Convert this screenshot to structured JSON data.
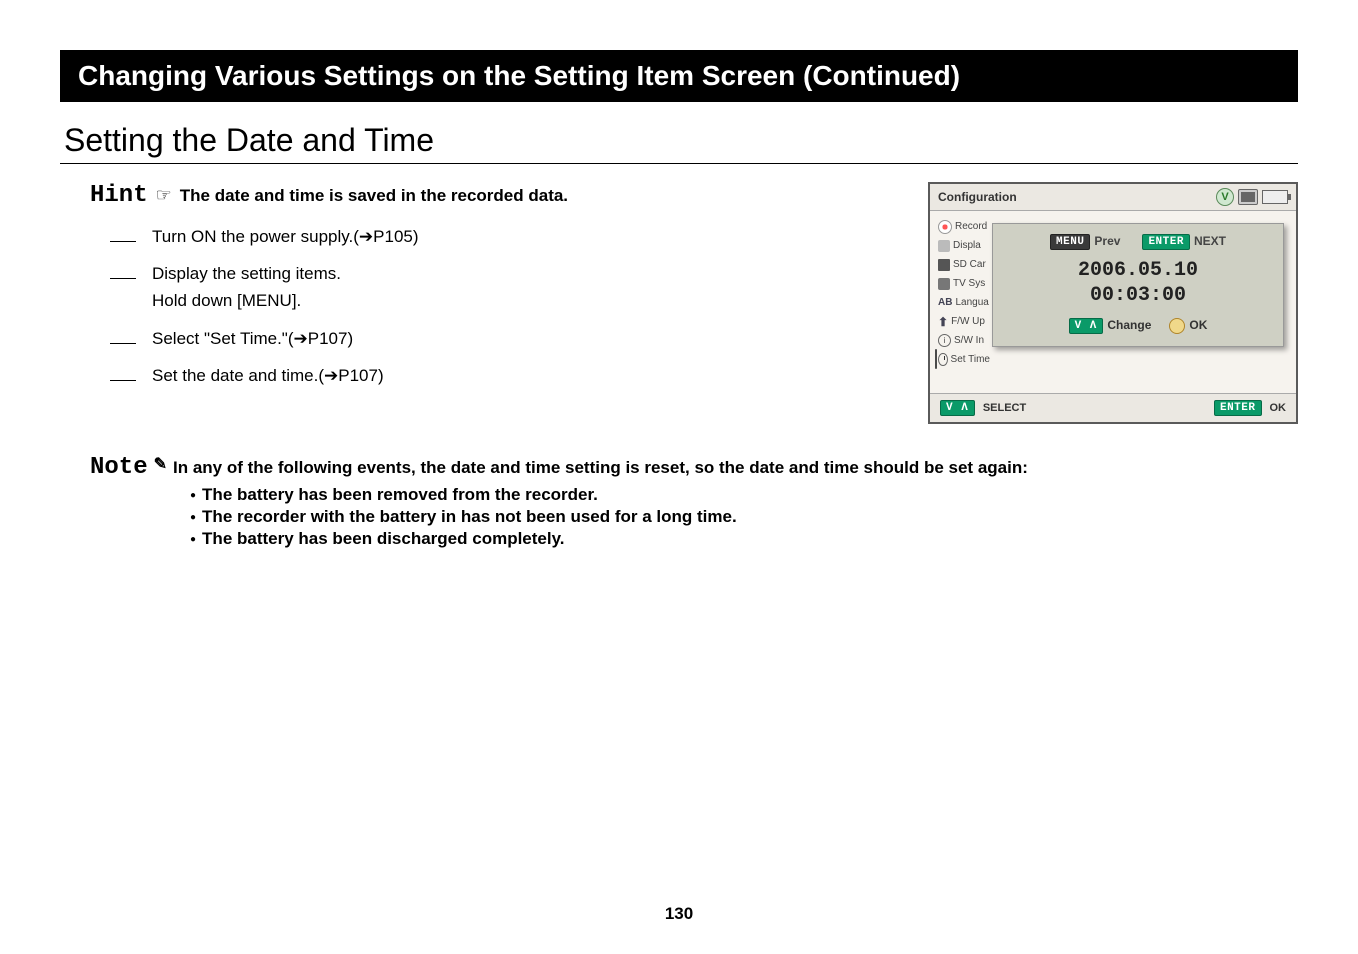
{
  "header": {
    "title": "Changing Various Settings on the Setting Item Screen (Continued)"
  },
  "section": {
    "title": "Setting the Date and Time"
  },
  "hint": {
    "label": "Hint",
    "icon": "☞",
    "text": "The date and time is saved in the recorded data."
  },
  "steps": [
    "Turn ON the power supply.(➔P105)",
    "Display the setting items.\nHold down [MENU].",
    "Select \"Set Time.\"(➔P107)",
    "Set the date and time.(➔P107)"
  ],
  "note": {
    "label": "Note",
    "icon": "✎",
    "lead": "In any of the following events, the date and time setting is reset, so the date and time should be set again:",
    "bullets": [
      "The battery has been removed from the recorder.",
      "The recorder with the battery in has not been used for a long time.",
      "The battery has been discharged completely."
    ]
  },
  "panel": {
    "header_title": "Configuration",
    "sidebar": [
      {
        "icon": "rec",
        "label": "Record"
      },
      {
        "icon": "disp",
        "label": "Displa"
      },
      {
        "icon": "sd",
        "label": "SD Car"
      },
      {
        "icon": "tv",
        "label": "TV Sys"
      },
      {
        "icon": "lang",
        "label": "Langua"
      },
      {
        "icon": "fw",
        "label": "F/W Up"
      },
      {
        "icon": "sw",
        "label": "S/W In"
      },
      {
        "icon": "time",
        "label": "Set Time",
        "selected": true
      }
    ],
    "overlay": {
      "menu_badge": "MENU",
      "menu_text": "Prev",
      "enter_badge": "ENTER",
      "enter_text": "NEXT",
      "date": "2006.05.10",
      "time": "00:03:00",
      "va_badge": "V Λ",
      "change_text": "Change",
      "ok_text": "OK"
    },
    "footer": {
      "va_badge": "V Λ",
      "select_text": "SELECT",
      "enter_badge": "ENTER",
      "ok_text": "OK"
    },
    "colors": {
      "panel_bg": "#f6f3ee",
      "overlay_bg": "#cfd0c4",
      "badge_dark": "#3a3a3a",
      "badge_green": "#0a9a68"
    }
  },
  "page_number": "130"
}
